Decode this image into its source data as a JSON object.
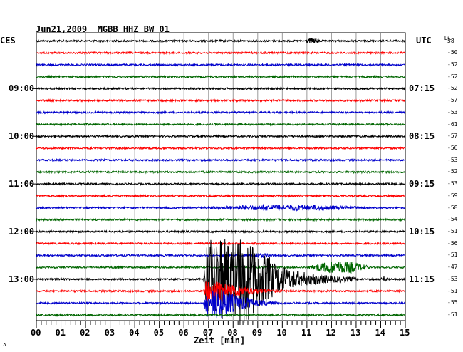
{
  "header": {
    "date": "Jun21,2009",
    "station": "MGBB HHZ BW 01"
  },
  "left_zone": "CES",
  "right_zone": "UTC",
  "dc_label": "DC",
  "left_times": [
    "09:00",
    "10:00",
    "11:00",
    "12:00",
    "13:00"
  ],
  "right_times": [
    "07:15",
    "08:15",
    "09:15",
    "10:15",
    "11:15"
  ],
  "footer": {
    "xlabel": "Zeit [min]",
    "corner_mark": "ʌ"
  },
  "chart_data": {
    "type": "line",
    "title": "Jun21,2009 MGBB HHZ BW 01",
    "xlabel": "Zeit [min]",
    "xlim": [
      0,
      15
    ],
    "x_ticks": [
      "00",
      "01",
      "02",
      "03",
      "04",
      "05",
      "06",
      "07",
      "08",
      "09",
      "10",
      "11",
      "12",
      "13",
      "14",
      "15"
    ],
    "trace_minutes": 15,
    "trace_count": 24,
    "grid": true,
    "trace_colors": [
      "#000000",
      "#ff0000",
      "#0000cc",
      "#006600"
    ],
    "dc_offsets": [
      58,
      -50,
      -52,
      -52,
      -52,
      -57,
      -53,
      -61,
      -57,
      -56,
      -53,
      -52,
      -53,
      -59,
      -58,
      -54,
      -51,
      -56,
      -51,
      -47,
      -53,
      -51,
      -55,
      -51
    ],
    "events": [
      {
        "trace": 0,
        "start_min": 10.9,
        "end_min": 11.6,
        "amplitude": 3
      },
      {
        "trace": 14,
        "start_min": 6.5,
        "end_min": 13.5,
        "amplitude": 3
      },
      {
        "trace": 18,
        "start_min": 8.4,
        "end_min": 9.6,
        "amplitude": 2.5
      },
      {
        "trace": 19,
        "start_min": 11.0,
        "end_min": 13.6,
        "amplitude": 8
      },
      {
        "trace": 20,
        "start_min": 6.8,
        "end_min": 13.0,
        "amplitude": 55
      },
      {
        "trace": 20,
        "start_min": 14.0,
        "end_min": 14.5,
        "amplitude": 4
      },
      {
        "trace": 21,
        "start_min": 6.8,
        "end_min": 10.0,
        "amplitude": 14
      },
      {
        "trace": 22,
        "start_min": 6.8,
        "end_min": 10.0,
        "amplitude": 20
      }
    ]
  }
}
